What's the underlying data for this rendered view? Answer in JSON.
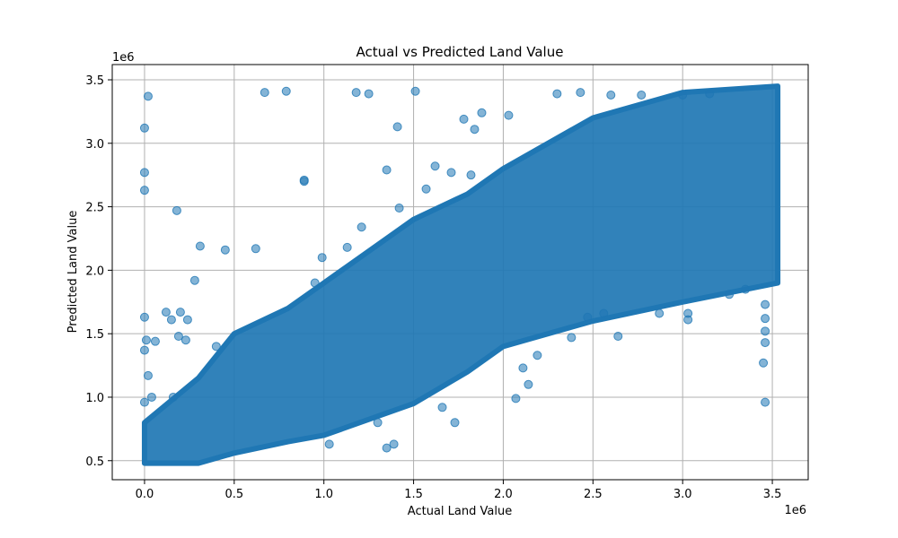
{
  "chart_data": {
    "type": "scatter",
    "title": "Actual vs Predicted Land Value",
    "xlabel": "Actual Land Value",
    "ylabel": "Predicted Land Value",
    "x_offset_label": "1e6",
    "y_offset_label": "1e6",
    "xlim": [
      -180000,
      3700000
    ],
    "ylim": [
      350000,
      3620000
    ],
    "xticks": [
      0,
      500000,
      1000000,
      1500000,
      2000000,
      2500000,
      3000000,
      3500000
    ],
    "xtick_labels": [
      "0.0",
      "0.5",
      "1.0",
      "1.5",
      "2.0",
      "2.5",
      "3.0",
      "3.5"
    ],
    "yticks": [
      500000,
      1000000,
      1500000,
      2000000,
      2500000,
      3000000,
      3500000
    ],
    "ytick_labels": [
      "0.5",
      "1.0",
      "1.5",
      "2.0",
      "2.5",
      "3.0",
      "3.5"
    ],
    "grid": true,
    "marker_color": "#1f77b4",
    "marker_alpha": 0.55,
    "band": {
      "description_points": [
        [
          0,
          480000,
          800000
        ],
        [
          300000,
          480000,
          1150000
        ],
        [
          500000,
          560000,
          1500000
        ],
        [
          800000,
          650000,
          1700000
        ],
        [
          1000000,
          700000,
          1900000
        ],
        [
          1500000,
          950000,
          2400000
        ],
        [
          1800000,
          1200000,
          2600000
        ],
        [
          2000000,
          1400000,
          2800000
        ],
        [
          2500000,
          1600000,
          3200000
        ],
        [
          3000000,
          1750000,
          3400000
        ],
        [
          3530000,
          1900000,
          3450000
        ]
      ]
    },
    "points": [
      [
        20000,
        3370000
      ],
      [
        0,
        3120000
      ],
      [
        0,
        2770000
      ],
      [
        0,
        2630000
      ],
      [
        180000,
        2470000
      ],
      [
        670000,
        3400000
      ],
      [
        790000,
        3410000
      ],
      [
        1180000,
        3400000
      ],
      [
        1250000,
        3390000
      ],
      [
        1510000,
        3410000
      ],
      [
        1410000,
        3130000
      ],
      [
        1350000,
        2790000
      ],
      [
        890000,
        2710000
      ],
      [
        890000,
        2700000
      ],
      [
        310000,
        2190000
      ],
      [
        450000,
        2160000
      ],
      [
        620000,
        2170000
      ],
      [
        280000,
        1920000
      ],
      [
        0,
        1630000
      ],
      [
        10000,
        1450000
      ],
      [
        120000,
        1670000
      ],
      [
        200000,
        1670000
      ],
      [
        240000,
        1610000
      ],
      [
        150000,
        1610000
      ],
      [
        60000,
        1440000
      ],
      [
        0,
        1370000
      ],
      [
        190000,
        1480000
      ],
      [
        230000,
        1450000
      ],
      [
        400000,
        1400000
      ],
      [
        20000,
        1170000
      ],
      [
        40000,
        1000000
      ],
      [
        0,
        960000
      ],
      [
        160000,
        1000000
      ],
      [
        1780000,
        3190000
      ],
      [
        1840000,
        3110000
      ],
      [
        1880000,
        3240000
      ],
      [
        2030000,
        3220000
      ],
      [
        2300000,
        3390000
      ],
      [
        2430000,
        3400000
      ],
      [
        1620000,
        2820000
      ],
      [
        1710000,
        2770000
      ],
      [
        1820000,
        2750000
      ],
      [
        1570000,
        2640000
      ],
      [
        1420000,
        2490000
      ],
      [
        1210000,
        2340000
      ],
      [
        1130000,
        2180000
      ],
      [
        990000,
        2100000
      ],
      [
        950000,
        1900000
      ],
      [
        2470000,
        1630000
      ],
      [
        2640000,
        1480000
      ],
      [
        2380000,
        1470000
      ],
      [
        2070000,
        990000
      ],
      [
        2110000,
        1230000
      ],
      [
        2140000,
        1100000
      ],
      [
        2190000,
        1330000
      ],
      [
        1730000,
        800000
      ],
      [
        1660000,
        920000
      ],
      [
        1350000,
        600000
      ],
      [
        1390000,
        630000
      ],
      [
        1030000,
        630000
      ],
      [
        1300000,
        800000
      ],
      [
        3460000,
        960000
      ],
      [
        3450000,
        1270000
      ],
      [
        3460000,
        1430000
      ],
      [
        3460000,
        1520000
      ],
      [
        3460000,
        1620000
      ],
      [
        3460000,
        1730000
      ],
      [
        2870000,
        1660000
      ],
      [
        3030000,
        1660000
      ],
      [
        3260000,
        1810000
      ],
      [
        3350000,
        1850000
      ],
      [
        3030000,
        1610000
      ],
      [
        2560000,
        1660000
      ],
      [
        2600000,
        3380000
      ],
      [
        2770000,
        3380000
      ],
      [
        3000000,
        3380000
      ],
      [
        3150000,
        3390000
      ]
    ]
  }
}
